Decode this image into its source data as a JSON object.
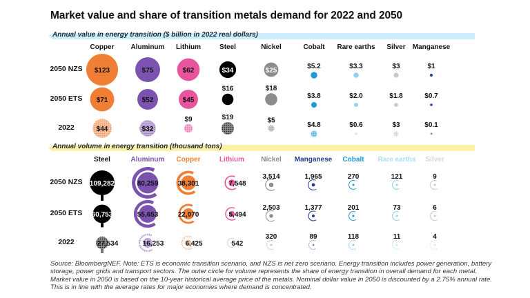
{
  "title": "Market value and share of transition metals demand for 2022 and 2050",
  "chart_data": [
    {
      "type": "bubble",
      "section_label": "Annual value in energy transition ($ billion in 2022 real dollars)",
      "rows": [
        "2050 NZS",
        "2050 ETS",
        "2022"
      ],
      "columns": [
        "Copper",
        "Aluminum",
        "Lithium",
        "Steel",
        "Nickel",
        "Cobalt",
        "Rare earths",
        "Silver",
        "Manganese"
      ],
      "colors": [
        "#f07f35",
        "#7b52ae",
        "#e8559c",
        "#000000",
        "#8c8c8c",
        "#1f9ad6",
        "#8fd1ef",
        "#c8c8c8",
        "#203e8c"
      ],
      "values": {
        "2050 NZS": [
          123,
          75,
          62,
          34,
          25,
          5.2,
          3.3,
          3,
          1
        ],
        "2050 ETS": [
          71,
          52,
          45,
          16,
          18,
          3.8,
          2.0,
          1.8,
          0.7
        ],
        "2022": [
          44,
          32,
          9,
          19,
          5,
          4.8,
          0.6,
          3,
          0.1
        ]
      },
      "labels": {
        "2050 NZS": [
          "$123",
          "$75",
          "$62",
          "$34",
          "$25",
          "$5.2",
          "$3.3",
          "$3",
          "$1"
        ],
        "2050 ETS": [
          "$71",
          "$52",
          "$45",
          "$16",
          "$18",
          "$3.8",
          "$2.0",
          "$1.8",
          "$0.7"
        ],
        "2022": [
          "$44",
          "$32",
          "$9",
          "$19",
          "$5",
          "$4.8",
          "$0.6",
          "$3",
          "$0.1"
        ]
      }
    },
    {
      "type": "bubble",
      "section_label": "Annual volume in energy transition (thousand tons)",
      "rows": [
        "2050 NZS",
        "2050 ETS",
        "2022"
      ],
      "columns": [
        "Steel",
        "Aluminum",
        "Copper",
        "Lithium",
        "Nickel",
        "Manganese",
        "Cobalt",
        "Rare earths",
        "Silver"
      ],
      "colors": [
        "#000000",
        "#7b52ae",
        "#f07f35",
        "#e8559c",
        "#8c8c8c",
        "#203e8c",
        "#1f9ad6",
        "#8fd1ef",
        "#c8c8c8"
      ],
      "values": {
        "2050 NZS": [
          109282,
          80259,
          38301,
          7548,
          3514,
          1965,
          270,
          121,
          9
        ],
        "2050 ETS": [
          60753,
          55653,
          22070,
          5494,
          2503,
          1377,
          201,
          73,
          6
        ],
        "2022": [
          27534,
          16253,
          6425,
          542,
          320,
          89,
          118,
          11,
          4
        ]
      },
      "labels": {
        "2050 NZS": [
          "109,282",
          "80,259",
          "38,301",
          "7,548",
          "3,514",
          "1,965",
          "270",
          "121",
          "9"
        ],
        "2050 ETS": [
          "60,753",
          "55,653",
          "22,070",
          "5,494",
          "2,503",
          "1,377",
          "201",
          "73",
          "6"
        ],
        "2022": [
          "27,534",
          "16,253",
          "6,425",
          "542",
          "320",
          "89",
          "118",
          "11",
          "4"
        ]
      },
      "outer_ring_meaning": "share of energy transition in overall demand"
    }
  ],
  "footnote": "Source: BloombergNEF. Note: ETS is economic transition scenario, and NZS is net zero scenario. Energy transition includes power generation, battery storage, power grids and transport sectors. The outer circle for volume represents the share of energy transition in overall demand for each metal. Market value in 2050 is based on the 10-year historical average price of the metals. Nominal dollar value in 2050 is discounted by a 2.75% annual rate. This is in line with the average rates for major economies where demand is concentrated."
}
